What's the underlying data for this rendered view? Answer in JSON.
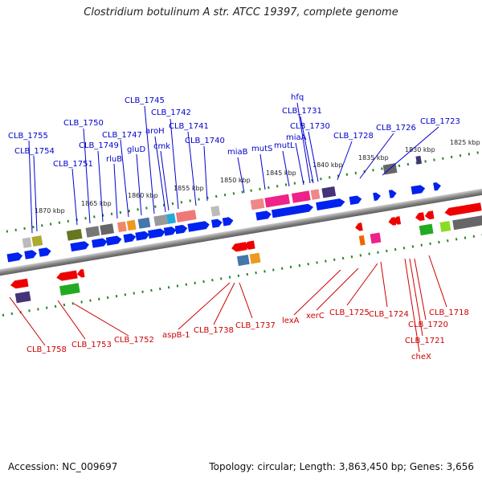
{
  "title": "Clostridium botulinum A str. ATCC 19397, complete genome",
  "footer": {
    "accession": "Accession: NC_009697",
    "summary": "Topology: circular; Length: 3,863,450 bp; Genes: 3,656"
  },
  "scale_ticks": [
    "1870 kbp",
    "1865 kbp",
    "1860 kbp",
    "1855 kbp",
    "1850 kbp",
    "1845 kbp",
    "1840 kbp",
    "1835 kbp",
    "1830 kbp",
    "1825 kbp"
  ],
  "genes_top": [
    "CLB_1755",
    "CLB_1754",
    "CLB_1751",
    "CLB_1750",
    "CLB_1749",
    "rluB",
    "CLB_1747",
    "gluD",
    "CLB_1745",
    "aroH",
    "cmk",
    "CLB_1742",
    "CLB_1741",
    "CLB_1740",
    "miaB",
    "mutS",
    "mutL",
    "miaA",
    "hfq",
    "CLB_1731",
    "CLB_1730",
    "CLB_1728",
    "CLB_1726",
    "CLB_1723"
  ],
  "genes_bottom": [
    "CLB_1758",
    "CLB_1753",
    "CLB_1752",
    "aspB-1",
    "CLB_1738",
    "CLB_1737",
    "lexA",
    "xerC",
    "CLB_1725",
    "CLB_1724",
    "CLB_1718",
    "CLB_1720",
    "CLB_1721",
    "cheX"
  ],
  "colors": {
    "forward_strand": "#0000ee",
    "reverse_strand": "#ee0000",
    "tick": "#228822",
    "backbone": "#888888"
  }
}
